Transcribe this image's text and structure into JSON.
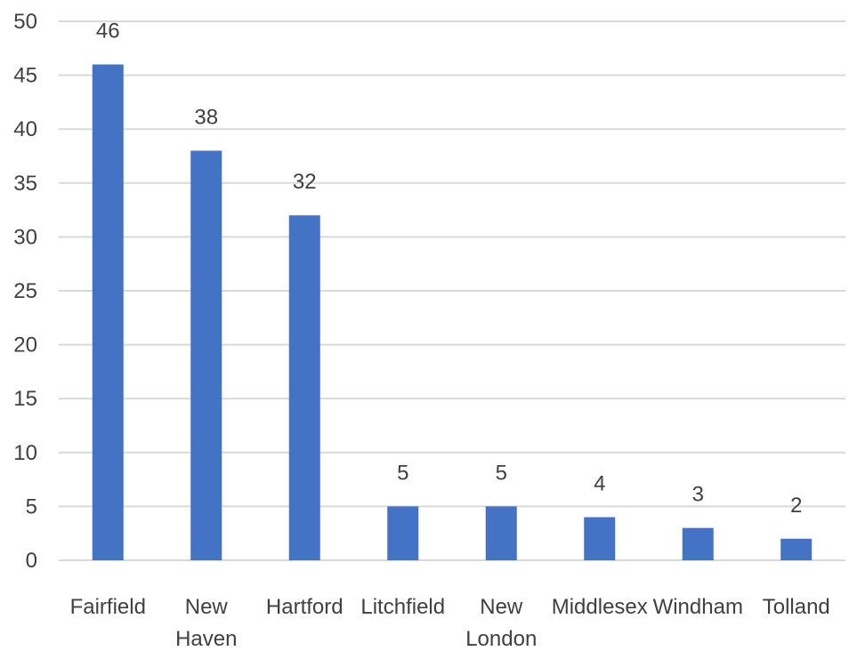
{
  "chart_data": {
    "type": "bar",
    "title": "",
    "xlabel": "",
    "ylabel": "",
    "categories": [
      [
        "Fairfield"
      ],
      [
        "New",
        "Haven"
      ],
      [
        "Hartford"
      ],
      [
        "Litchfield"
      ],
      [
        "New",
        "London"
      ],
      [
        "Middlesex"
      ],
      [
        "Windham"
      ],
      [
        "Tolland"
      ]
    ],
    "values": [
      46,
      38,
      32,
      5,
      5,
      4,
      3,
      2
    ],
    "data_labels": [
      "46",
      "38",
      "32",
      "5",
      "5",
      "4",
      "3",
      "2"
    ],
    "ylim": [
      0,
      50
    ],
    "yticks": [
      0,
      5,
      10,
      15,
      20,
      25,
      30,
      35,
      40,
      45,
      50
    ],
    "grid": true,
    "legend": "none",
    "colors": {
      "bar": "#4472c4",
      "grid": "#d9d9d9",
      "text": "#404040"
    }
  }
}
